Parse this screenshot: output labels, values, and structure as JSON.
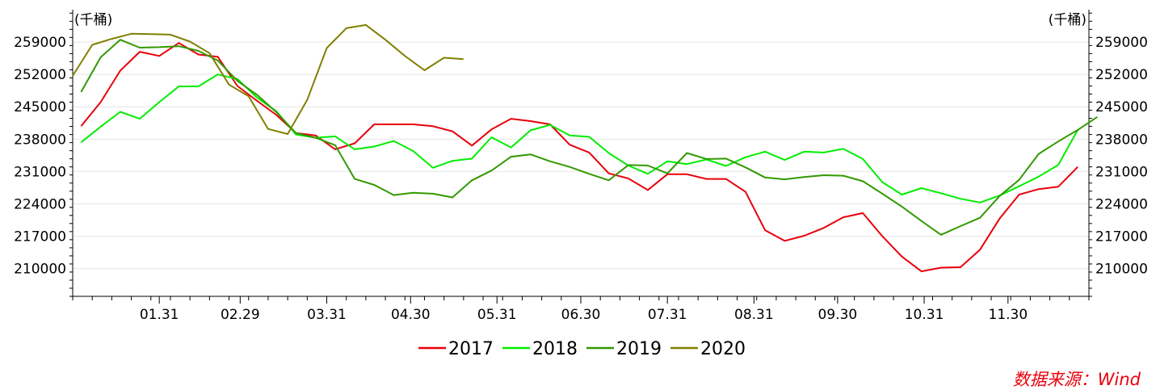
{
  "chart_data": {
    "type": "line",
    "unit_left": "(千桶)",
    "unit_right": "(千桶)",
    "source": "数据来源：Wind",
    "ylim": [
      204000,
      266000
    ],
    "yticks": [
      210000,
      217000,
      224000,
      231000,
      238000,
      245000,
      252000,
      259000
    ],
    "xlim": [
      0,
      52
    ],
    "xticks": [
      {
        "label": "01.31",
        "x": 4.43
      },
      {
        "label": "02.29",
        "x": 8.57
      },
      {
        "label": "03.31",
        "x": 13.0
      },
      {
        "label": "04.30",
        "x": 17.29
      },
      {
        "label": "05.31",
        "x": 21.71
      },
      {
        "label": "06.30",
        "x": 26.0
      },
      {
        "label": "07.31",
        "x": 30.43
      },
      {
        "label": "08.31",
        "x": 34.86
      },
      {
        "label": "09.30",
        "x": 39.14
      },
      {
        "label": "10.31",
        "x": 43.57
      },
      {
        "label": "11.30",
        "x": 47.86
      }
    ],
    "grid": true,
    "legend_position": "bottom",
    "series": [
      {
        "name": "2017",
        "color": "#e8000b",
        "x0": 0.43,
        "values": [
          240800,
          246000,
          252800,
          256900,
          256000,
          258800,
          256300,
          255800,
          249500,
          246300,
          243200,
          239300,
          238800,
          235800,
          237100,
          241200,
          241200,
          241200,
          240800,
          239700,
          236600,
          240100,
          242400,
          241900,
          241200,
          236800,
          235100,
          230600,
          229500,
          227000,
          230400,
          230400,
          229400,
          229400,
          226600,
          218300,
          216000,
          217100,
          218800,
          221100,
          222000,
          217000,
          212600,
          209400,
          210200,
          210300,
          214100,
          220800,
          226000,
          227200,
          227700,
          232000
        ]
      },
      {
        "name": "2018",
        "color": "#00ee00",
        "x0": 0.43,
        "values": [
          237300,
          240700,
          243900,
          242400,
          246000,
          249400,
          249400,
          252000,
          251000,
          247000,
          244000,
          239000,
          238300,
          238600,
          235800,
          236400,
          237600,
          235400,
          231800,
          233300,
          233800,
          238400,
          236200,
          239900,
          241100,
          238800,
          238500,
          235000,
          232300,
          230500,
          233200,
          232600,
          233600,
          232200,
          234100,
          235300,
          233500,
          235300,
          235100,
          235900,
          233700,
          228700,
          226000,
          227400,
          226300,
          225100,
          224300,
          225800,
          227800,
          229900,
          232400,
          240000
        ]
      },
      {
        "name": "2019",
        "color": "#339900",
        "x0": 0.43,
        "values": [
          248200,
          255700,
          259500,
          257800,
          257900,
          258100,
          257100,
          255000,
          250600,
          247600,
          243800,
          239300,
          238300,
          236700,
          229400,
          228100,
          225900,
          226400,
          226200,
          225400,
          229100,
          231200,
          234200,
          234700,
          233200,
          232000,
          230500,
          229100,
          232400,
          232300,
          230600,
          235000,
          233700,
          233800,
          231900,
          229700,
          229300,
          229800,
          230200,
          230100,
          228900,
          226200,
          223400,
          220300,
          217300,
          219200,
          221000,
          225700,
          229200,
          234800,
          237500,
          240000,
          242800
        ]
      },
      {
        "name": "2020",
        "color": "#808000",
        "x0": 0.0,
        "values": [
          251700,
          258400,
          259700,
          260800,
          260700,
          260600,
          259100,
          256600,
          249800,
          247300,
          240200,
          239100,
          246500,
          257700,
          262000,
          262700,
          259500,
          256000,
          252900,
          255600,
          255300
        ]
      }
    ]
  },
  "legend": {
    "items": [
      "2017",
      "2018",
      "2019",
      "2020"
    ]
  }
}
